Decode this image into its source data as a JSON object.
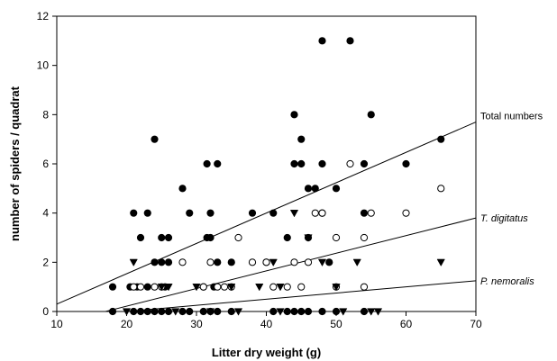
{
  "chart_data": {
    "type": "scatter",
    "title": "",
    "xlabel": "Litter dry weight (g)",
    "ylabel": "number of spiders / quadrat",
    "xlim": [
      10,
      70
    ],
    "ylim": [
      0,
      12
    ],
    "xticks": [
      10,
      20,
      30,
      40,
      50,
      60,
      70
    ],
    "yticks": [
      0,
      2,
      4,
      6,
      8,
      10,
      12
    ],
    "grid": false,
    "legend": "none",
    "series": [
      {
        "marker": "filled-circle",
        "color": "#000000",
        "points": [
          [
            18,
            1
          ],
          [
            20.5,
            1
          ],
          [
            21,
            4
          ],
          [
            21.5,
            1
          ],
          [
            22,
            3
          ],
          [
            23,
            4
          ],
          [
            23,
            1
          ],
          [
            24,
            2
          ],
          [
            24,
            7
          ],
          [
            25,
            2
          ],
          [
            25,
            3
          ],
          [
            25.5,
            1
          ],
          [
            26,
            2
          ],
          [
            26,
            3
          ],
          [
            28,
            5
          ],
          [
            29,
            4
          ],
          [
            31,
            1
          ],
          [
            31.5,
            6
          ],
          [
            31.5,
            3
          ],
          [
            32,
            4
          ],
          [
            32,
            3
          ],
          [
            32.5,
            1
          ],
          [
            33,
            6
          ],
          [
            33,
            2
          ],
          [
            35,
            2
          ],
          [
            38,
            4
          ],
          [
            40,
            2
          ],
          [
            41,
            4
          ],
          [
            43,
            3
          ],
          [
            44,
            8
          ],
          [
            44,
            6
          ],
          [
            45,
            7
          ],
          [
            45,
            6
          ],
          [
            46,
            5
          ],
          [
            46,
            3
          ],
          [
            47,
            5
          ],
          [
            48,
            11
          ],
          [
            48,
            6
          ],
          [
            48,
            4
          ],
          [
            49,
            2
          ],
          [
            50,
            5
          ],
          [
            52,
            11
          ],
          [
            54,
            6
          ],
          [
            54,
            4
          ],
          [
            55,
            8
          ],
          [
            60,
            6
          ],
          [
            65,
            7
          ],
          [
            18,
            0
          ],
          [
            21,
            0
          ],
          [
            22,
            0
          ],
          [
            23,
            0
          ],
          [
            24,
            0
          ],
          [
            25,
            0
          ],
          [
            26,
            0
          ],
          [
            28,
            0
          ],
          [
            29,
            0
          ],
          [
            31,
            0
          ],
          [
            32,
            0
          ],
          [
            33,
            0
          ],
          [
            35,
            0
          ],
          [
            41,
            0
          ],
          [
            43,
            0
          ],
          [
            44,
            0
          ],
          [
            45,
            0
          ],
          [
            46,
            0
          ],
          [
            48,
            0
          ],
          [
            50,
            0
          ],
          [
            54,
            0
          ]
        ]
      },
      {
        "marker": "open-circle",
        "color": "#000000",
        "points": [
          [
            21,
            1
          ],
          [
            22,
            1
          ],
          [
            24,
            1
          ],
          [
            25,
            1
          ],
          [
            28,
            2
          ],
          [
            31,
            1
          ],
          [
            32,
            2
          ],
          [
            33,
            1
          ],
          [
            34,
            1
          ],
          [
            35,
            1
          ],
          [
            36,
            3
          ],
          [
            38,
            2
          ],
          [
            40,
            2
          ],
          [
            41,
            1
          ],
          [
            43,
            1
          ],
          [
            44,
            2
          ],
          [
            45,
            1
          ],
          [
            46,
            2
          ],
          [
            47,
            4
          ],
          [
            48,
            4
          ],
          [
            50,
            1
          ],
          [
            50,
            3
          ],
          [
            52,
            6
          ],
          [
            54,
            1
          ],
          [
            54,
            3
          ],
          [
            55,
            4
          ],
          [
            60,
            4
          ],
          [
            65,
            5
          ]
        ]
      },
      {
        "marker": "filled-triangle-down",
        "color": "#000000",
        "points": [
          [
            21,
            2
          ],
          [
            25,
            1
          ],
          [
            26,
            1
          ],
          [
            30,
            1
          ],
          [
            35,
            1
          ],
          [
            39,
            1
          ],
          [
            41,
            2
          ],
          [
            42,
            1
          ],
          [
            44,
            4
          ],
          [
            46,
            3
          ],
          [
            48,
            2
          ],
          [
            50,
            1
          ],
          [
            53,
            2
          ],
          [
            65,
            2
          ],
          [
            20,
            0
          ],
          [
            27,
            0
          ],
          [
            32,
            0
          ],
          [
            36,
            0
          ],
          [
            42,
            0
          ],
          [
            51,
            0
          ],
          [
            55,
            0
          ],
          [
            56,
            0
          ]
        ]
      }
    ],
    "lines": [
      {
        "label": "Total numbers",
        "x1": 10,
        "y1": 0.3,
        "x2": 70,
        "y2": 7.7
      },
      {
        "label": "T. digitatus",
        "x1": 10,
        "y1": -0.5,
        "x2": 70,
        "y2": 3.8
      },
      {
        "label": "P. nemoralis",
        "x1": 10,
        "y1": -0.25,
        "x2": 70,
        "y2": 1.25
      }
    ]
  }
}
